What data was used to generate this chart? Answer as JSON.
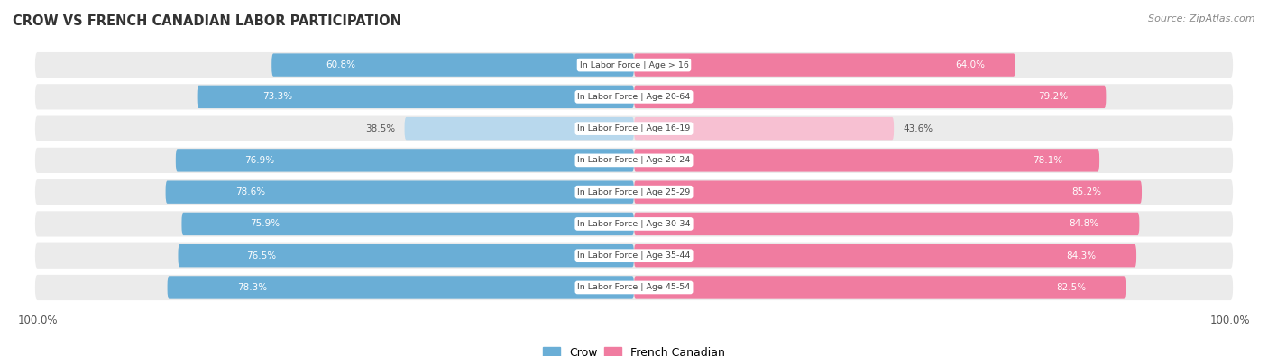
{
  "title": "Crow vs French Canadian Labor Participation",
  "source": "Source: ZipAtlas.com",
  "categories": [
    "In Labor Force | Age > 16",
    "In Labor Force | Age 20-64",
    "In Labor Force | Age 16-19",
    "In Labor Force | Age 20-24",
    "In Labor Force | Age 25-29",
    "In Labor Force | Age 30-34",
    "In Labor Force | Age 35-44",
    "In Labor Force | Age 45-54"
  ],
  "crow_values": [
    60.8,
    73.3,
    38.5,
    76.9,
    78.6,
    75.9,
    76.5,
    78.3
  ],
  "french_values": [
    64.0,
    79.2,
    43.6,
    78.1,
    85.2,
    84.8,
    84.3,
    82.5
  ],
  "crow_color_full": "#6aaed6",
  "crow_color_light": "#b8d8ed",
  "french_color_full": "#f07ca0",
  "french_color_light": "#f7c0d2",
  "label_color_full": "#ffffff",
  "label_color_light": "#555555",
  "center_label_color": "#444444",
  "bg_row_color": "#ebebeb",
  "max_val": 100.0,
  "bar_height": 0.72,
  "legend_crow": "Crow",
  "legend_french": "French Canadian"
}
